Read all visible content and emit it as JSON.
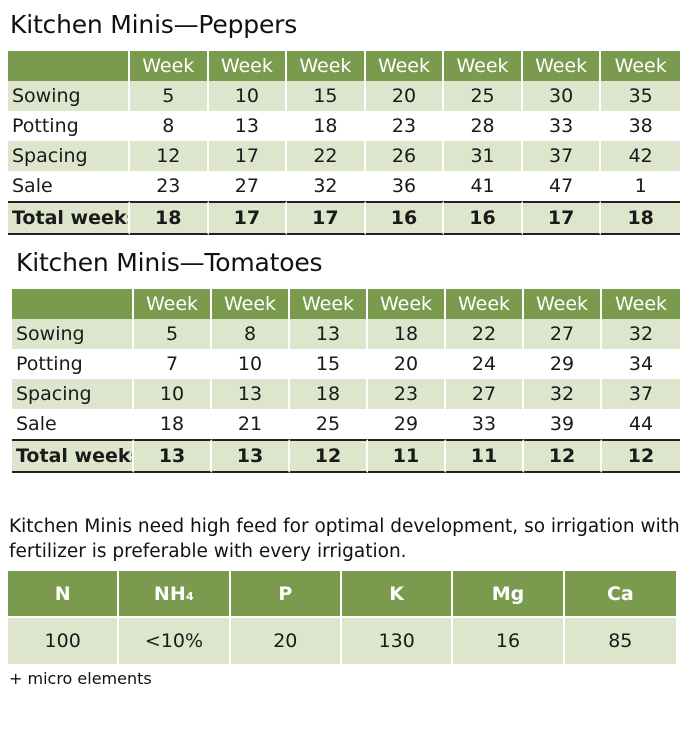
{
  "peppers": {
    "title": "Kitchen Minis—Peppers",
    "header": [
      "Week",
      "Week",
      "Week",
      "Week",
      "Week",
      "Week",
      "Week"
    ],
    "rows": [
      {
        "label": "Sowing",
        "values": [
          "5",
          "10",
          "15",
          "20",
          "25",
          "30",
          "35"
        ]
      },
      {
        "label": "Potting",
        "values": [
          "8",
          "13",
          "18",
          "23",
          "28",
          "33",
          "38"
        ]
      },
      {
        "label": "Spacing",
        "values": [
          "12",
          "17",
          "22",
          "26",
          "31",
          "37",
          "42"
        ]
      },
      {
        "label": "Sale",
        "values": [
          "23",
          "27",
          "32",
          "36",
          "41",
          "47",
          "1"
        ]
      },
      {
        "label": "Total weeks",
        "values": [
          "18",
          "17",
          "17",
          "16",
          "16",
          "17",
          "18"
        ]
      }
    ]
  },
  "tomatoes": {
    "title": "Kitchen Minis—Tomatoes",
    "header": [
      "Week",
      "Week",
      "Week",
      "Week",
      "Week",
      "Week",
      "Week"
    ],
    "rows": [
      {
        "label": "Sowing",
        "values": [
          "5",
          "8",
          "13",
          "18",
          "22",
          "27",
          "32"
        ]
      },
      {
        "label": "Potting",
        "values": [
          "7",
          "10",
          "15",
          "20",
          "24",
          "29",
          "34"
        ]
      },
      {
        "label": "Spacing",
        "values": [
          "10",
          "13",
          "18",
          "23",
          "27",
          "32",
          "37"
        ]
      },
      {
        "label": "Sale",
        "values": [
          "18",
          "21",
          "25",
          "29",
          "33",
          "39",
          "44"
        ]
      },
      {
        "label": "Total weeks",
        "values": [
          "13",
          "13",
          "12",
          "11",
          "11",
          "12",
          "12"
        ]
      }
    ]
  },
  "note": "Kitchen Minis need high feed for optimal development, so irrigation with fertilizer is preferable with every irrigation.",
  "fertilizer": {
    "headers": [
      "N",
      "NH₄",
      "P",
      "K",
      "Mg",
      "Ca"
    ],
    "values": [
      "100",
      "<10%",
      "20",
      "130",
      "16",
      "85"
    ]
  },
  "footnote": "+ micro elements",
  "colors": {
    "header_green": "#7a9a4e",
    "row_shade": "#dde6cc"
  }
}
